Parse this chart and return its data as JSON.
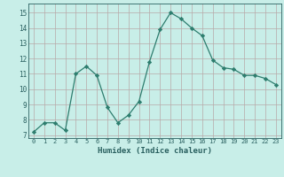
{
  "x": [
    0,
    1,
    2,
    3,
    4,
    5,
    6,
    7,
    8,
    9,
    10,
    11,
    12,
    13,
    14,
    15,
    16,
    17,
    18,
    19,
    20,
    21,
    22,
    23
  ],
  "y": [
    7.2,
    7.8,
    7.8,
    7.3,
    11.0,
    11.5,
    10.9,
    8.8,
    7.8,
    8.3,
    9.2,
    11.8,
    13.9,
    15.0,
    14.6,
    14.0,
    13.5,
    11.9,
    11.4,
    11.3,
    10.9,
    10.9,
    10.7,
    10.3
  ],
  "line_color": "#2d7d6e",
  "marker": "D",
  "marker_size": 2.2,
  "bg_color": "#c8eee8",
  "grid_color": "#b8a8a8",
  "xlabel": "Humidex (Indice chaleur)",
  "xlim": [
    -0.5,
    23.5
  ],
  "ylim": [
    6.8,
    15.6
  ],
  "yticks": [
    7,
    8,
    9,
    10,
    11,
    12,
    13,
    14,
    15
  ],
  "xtick_labels": [
    "0",
    "1",
    "2",
    "3",
    "4",
    "5",
    "6",
    "7",
    "8",
    "9",
    "10",
    "11",
    "12",
    "13",
    "14",
    "15",
    "16",
    "17",
    "18",
    "19",
    "20",
    "21",
    "22",
    "23"
  ],
  "tick_color": "#2a6060",
  "label_color": "#2a6060"
}
